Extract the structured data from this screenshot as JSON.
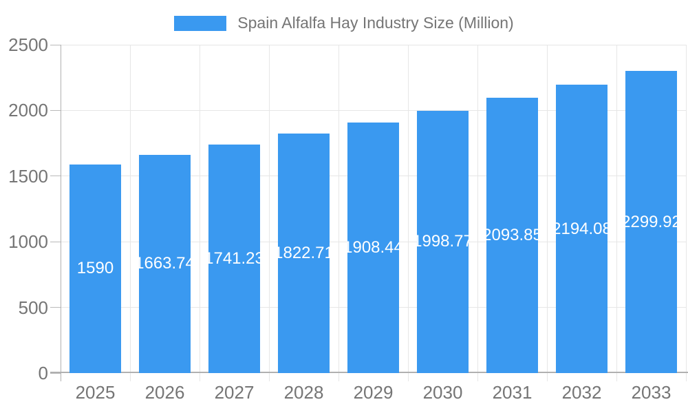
{
  "legend": {
    "label": "Spain Alfalfa Hay Industry Size (Million)"
  },
  "colors": {
    "bar": "#3A99F0",
    "grid": "#e6e6e6",
    "axis": "#b0b0b0",
    "tick": "#b9b9b9",
    "text": "#757575",
    "bar_label": "#ffffff",
    "background": "#ffffff"
  },
  "chart_data": {
    "type": "bar",
    "title": "Spain Alfalfa Hay Industry Size (Million)",
    "series_name": "Spain Alfalfa Hay Industry Size (Million)",
    "categories": [
      "2025",
      "2026",
      "2027",
      "2028",
      "2029",
      "2030",
      "2031",
      "2032",
      "2033"
    ],
    "values": [
      1590,
      1663.74,
      1741.23,
      1822.71,
      1908.44,
      1998.77,
      2093.85,
      2194.08,
      2299.92
    ],
    "value_labels": [
      "1590",
      "1663.74",
      "1741.23",
      "1822.71",
      "1908.44",
      "1998.77",
      "2093.85",
      "2194.08",
      "2299.92"
    ],
    "xlabel": "",
    "ylabel": "",
    "ylim": [
      0,
      2500
    ],
    "yticks": [
      0,
      500,
      1000,
      1500,
      2000,
      2500
    ],
    "grid": true,
    "legend_position": "top",
    "bar_label_position": "center"
  }
}
